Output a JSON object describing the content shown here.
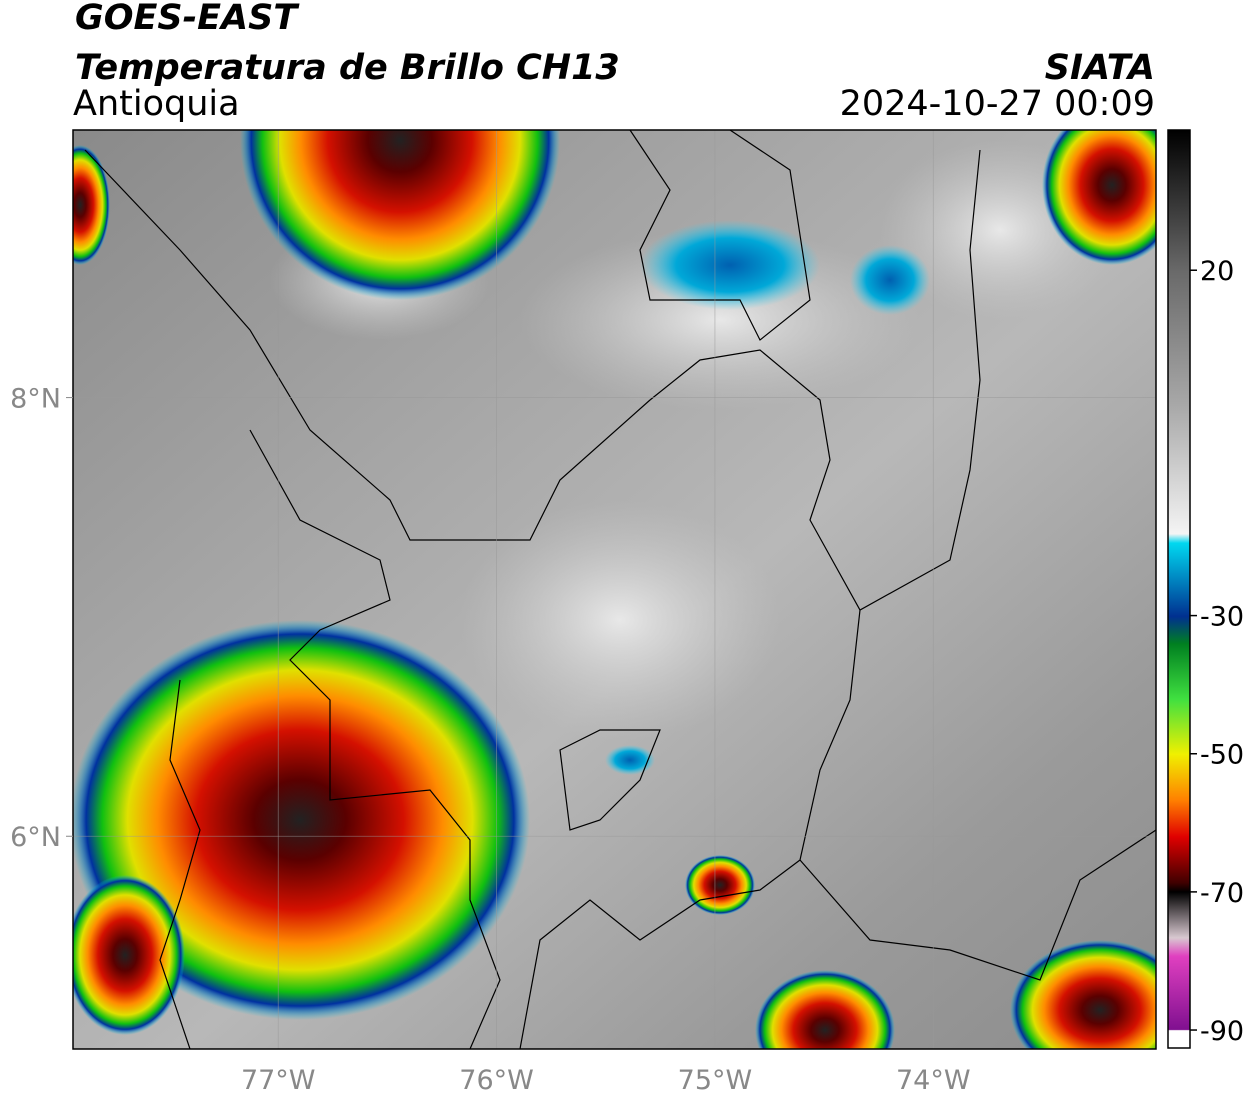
{
  "header": {
    "title": "GOES-EAST",
    "subtitle": "Temperatura de Brillo CH13",
    "region": "Antioquia",
    "source": "SIATA",
    "datetime": "2024-10-27 00:09"
  },
  "map": {
    "xlim": [
      -77.94,
      -72.98
    ],
    "ylim": [
      5.03,
      9.22
    ],
    "xticks": [
      {
        "value": -77,
        "label": "77°W"
      },
      {
        "value": -76,
        "label": "76°W"
      },
      {
        "value": -75,
        "label": "75°W"
      },
      {
        "value": -74,
        "label": "74°W"
      }
    ],
    "yticks": [
      {
        "value": 8,
        "label": "8°N"
      },
      {
        "value": 6,
        "label": "6°N"
      }
    ]
  },
  "colorbar": {
    "lim": [
      -92.6,
      40.3
    ],
    "ticks": [
      20,
      -30,
      -50,
      -70,
      -90
    ]
  }
}
